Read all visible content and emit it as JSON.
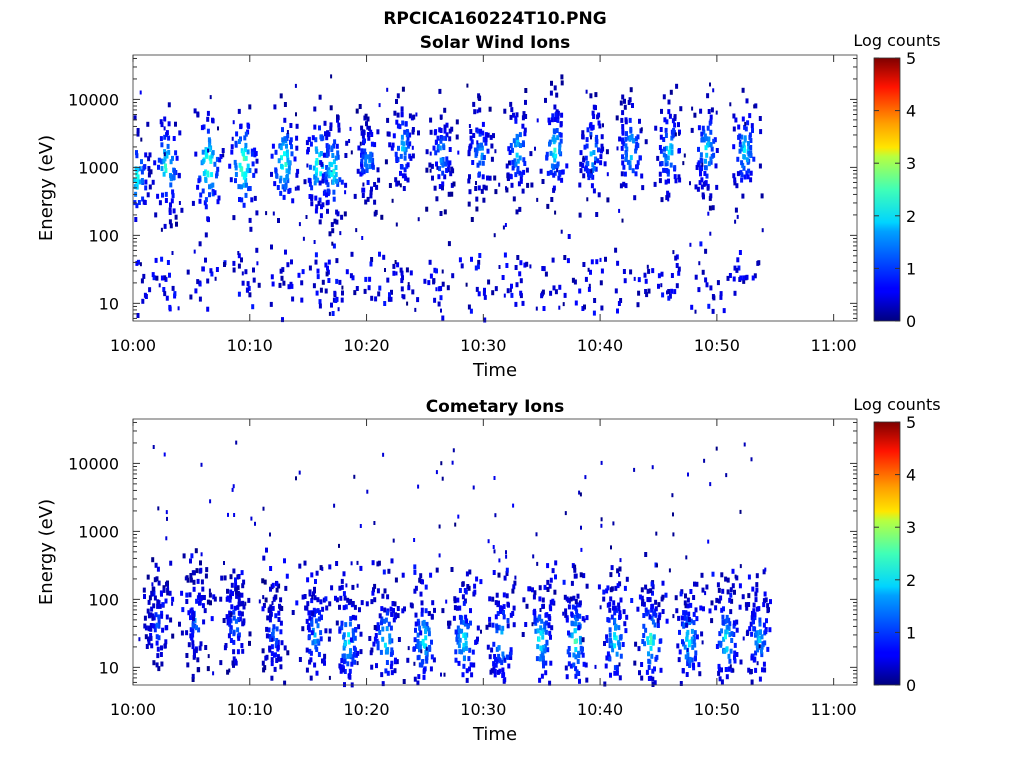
{
  "figure_title": "RPCICA160224T10.PNG",
  "chart_data": [
    {
      "type": "heatmap",
      "title": "Solar Wind Ions",
      "xlabel": "Time",
      "ylabel": "Energy (eV)",
      "x_ticks": [
        "10:00",
        "10:10",
        "10:20",
        "10:30",
        "10:40",
        "10:50",
        "11:00"
      ],
      "x_range_minutes": [
        0,
        62
      ],
      "y_scale": "log",
      "y_ticks": [
        "10",
        "100",
        "1000",
        "10000"
      ],
      "y_range": [
        5.5,
        45000
      ],
      "grid": false,
      "colorbar": {
        "label": "Log counts",
        "range": [
          0,
          5
        ],
        "ticks": [
          "0",
          "1",
          "2",
          "3",
          "4",
          "5"
        ],
        "colormap": "jet"
      },
      "data_end_minute": 54.5,
      "bursts": [
        {
          "t": 0.2,
          "e": 700,
          "c": 2.2
        },
        {
          "t": 2.8,
          "e": 1000,
          "c": 2.5
        },
        {
          "t": 6.3,
          "e": 1100,
          "c": 3.0
        },
        {
          "t": 9.3,
          "e": 1100,
          "c": 3.0
        },
        {
          "t": 12.8,
          "e": 1200,
          "c": 2.6
        },
        {
          "t": 15.8,
          "e": 1100,
          "c": 2.6
        },
        {
          "t": 17.0,
          "e": 900,
          "c": 2.4
        },
        {
          "t": 20.0,
          "e": 1200,
          "c": 1.6
        },
        {
          "t": 23.0,
          "e": 2000,
          "c": 1.8
        },
        {
          "t": 26.3,
          "e": 1600,
          "c": 1.6
        },
        {
          "t": 29.6,
          "e": 1600,
          "c": 1.7
        },
        {
          "t": 32.8,
          "e": 1800,
          "c": 2.0
        },
        {
          "t": 36.0,
          "e": 1800,
          "c": 2.2
        },
        {
          "t": 39.2,
          "e": 1600,
          "c": 1.9
        },
        {
          "t": 42.5,
          "e": 1800,
          "c": 2.0
        },
        {
          "t": 45.8,
          "e": 1800,
          "c": 2.0
        },
        {
          "t": 49.0,
          "e": 1800,
          "c": 2.0
        },
        {
          "t": 52.3,
          "e": 1800,
          "c": 2.1
        }
      ]
    },
    {
      "type": "heatmap",
      "title": "Cometary Ions",
      "xlabel": "Time",
      "ylabel": "Energy (eV)",
      "x_ticks": [
        "10:00",
        "10:10",
        "10:20",
        "10:30",
        "10:40",
        "10:50",
        "11:00"
      ],
      "x_range_minutes": [
        0,
        62
      ],
      "y_scale": "log",
      "y_ticks": [
        "10",
        "100",
        "1000",
        "10000"
      ],
      "y_range": [
        5.5,
        45000
      ],
      "grid": false,
      "colorbar": {
        "label": "Log counts",
        "range": [
          0,
          5
        ],
        "ticks": [
          "0",
          "1",
          "2",
          "3",
          "4",
          "5"
        ],
        "colormap": "jet"
      },
      "data_end_minute": 54.5,
      "bursts": [
        {
          "t": 2.0,
          "e": 40,
          "c": 1.2
        },
        {
          "t": 5.3,
          "e": 50,
          "c": 1.4
        },
        {
          "t": 8.6,
          "e": 40,
          "c": 1.4
        },
        {
          "t": 12.0,
          "e": 30,
          "c": 1.3
        },
        {
          "t": 15.5,
          "e": 30,
          "c": 1.8
        },
        {
          "t": 18.3,
          "e": 25,
          "c": 2.2
        },
        {
          "t": 21.5,
          "e": 25,
          "c": 2.2
        },
        {
          "t": 24.8,
          "e": 25,
          "c": 2.2
        },
        {
          "t": 28.2,
          "e": 25,
          "c": 2.2
        },
        {
          "t": 31.5,
          "e": 25,
          "c": 2.2
        },
        {
          "t": 34.8,
          "e": 25,
          "c": 2.3
        },
        {
          "t": 37.8,
          "e": 25,
          "c": 2.4
        },
        {
          "t": 41.2,
          "e": 25,
          "c": 2.2
        },
        {
          "t": 44.2,
          "e": 25,
          "c": 2.4
        },
        {
          "t": 47.5,
          "e": 25,
          "c": 2.2
        },
        {
          "t": 50.7,
          "e": 25,
          "c": 2.2
        },
        {
          "t": 53.5,
          "e": 25,
          "c": 1.8
        }
      ]
    }
  ]
}
